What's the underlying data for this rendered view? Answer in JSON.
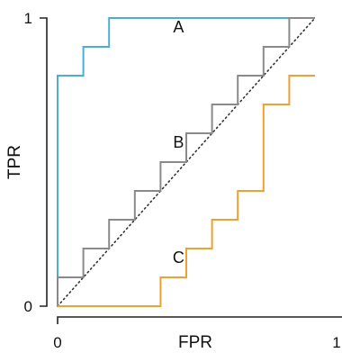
{
  "chart_data": {
    "type": "line",
    "title": "",
    "xlabel": "FPR",
    "ylabel": "TPR",
    "xlim": [
      0,
      1
    ],
    "ylim": [
      0,
      1
    ],
    "grid": false,
    "legend": "none",
    "xticks": [
      {
        "value": 0,
        "label": "0"
      },
      {
        "value": 1,
        "label": "1"
      }
    ],
    "yticks": [
      {
        "value": 0,
        "label": "0"
      },
      {
        "value": 1,
        "label": "1"
      }
    ],
    "diagonal": {
      "style": "dotted",
      "from": [
        0,
        0
      ],
      "to": [
        1,
        1
      ]
    },
    "series": [
      {
        "label": "A",
        "color": "#4aaed9",
        "label_pos": [
          0.47,
          0.95
        ],
        "points": [
          [
            0,
            0
          ],
          [
            0,
            0.8
          ],
          [
            0.1,
            0.8
          ],
          [
            0.1,
            0.9
          ],
          [
            0.2,
            0.9
          ],
          [
            0.2,
            1
          ],
          [
            1,
            1
          ]
        ]
      },
      {
        "label": "B",
        "color": "#8a8a8a",
        "label_pos": [
          0.47,
          0.55
        ],
        "points": [
          [
            0,
            0
          ],
          [
            0,
            0.1
          ],
          [
            0.1,
            0.1
          ],
          [
            0.1,
            0.2
          ],
          [
            0.2,
            0.2
          ],
          [
            0.2,
            0.3
          ],
          [
            0.3,
            0.3
          ],
          [
            0.3,
            0.4
          ],
          [
            0.4,
            0.4
          ],
          [
            0.4,
            0.5
          ],
          [
            0.5,
            0.5
          ],
          [
            0.5,
            0.6
          ],
          [
            0.6,
            0.6
          ],
          [
            0.6,
            0.7
          ],
          [
            0.7,
            0.7
          ],
          [
            0.7,
            0.8
          ],
          [
            0.8,
            0.8
          ],
          [
            0.8,
            0.9
          ],
          [
            0.9,
            0.9
          ],
          [
            0.9,
            1
          ],
          [
            1,
            1
          ]
        ]
      },
      {
        "label": "C",
        "color": "#f0a030",
        "label_pos": [
          0.47,
          0.15
        ],
        "points": [
          [
            0,
            0
          ],
          [
            0.4,
            0
          ],
          [
            0.4,
            0.1
          ],
          [
            0.5,
            0.1
          ],
          [
            0.5,
            0.2
          ],
          [
            0.6,
            0.2
          ],
          [
            0.6,
            0.3
          ],
          [
            0.7,
            0.3
          ],
          [
            0.7,
            0.4
          ],
          [
            0.8,
            0.4
          ],
          [
            0.8,
            0.7
          ],
          [
            0.9,
            0.7
          ],
          [
            0.9,
            0.8
          ],
          [
            1,
            0.8
          ]
        ]
      }
    ]
  }
}
